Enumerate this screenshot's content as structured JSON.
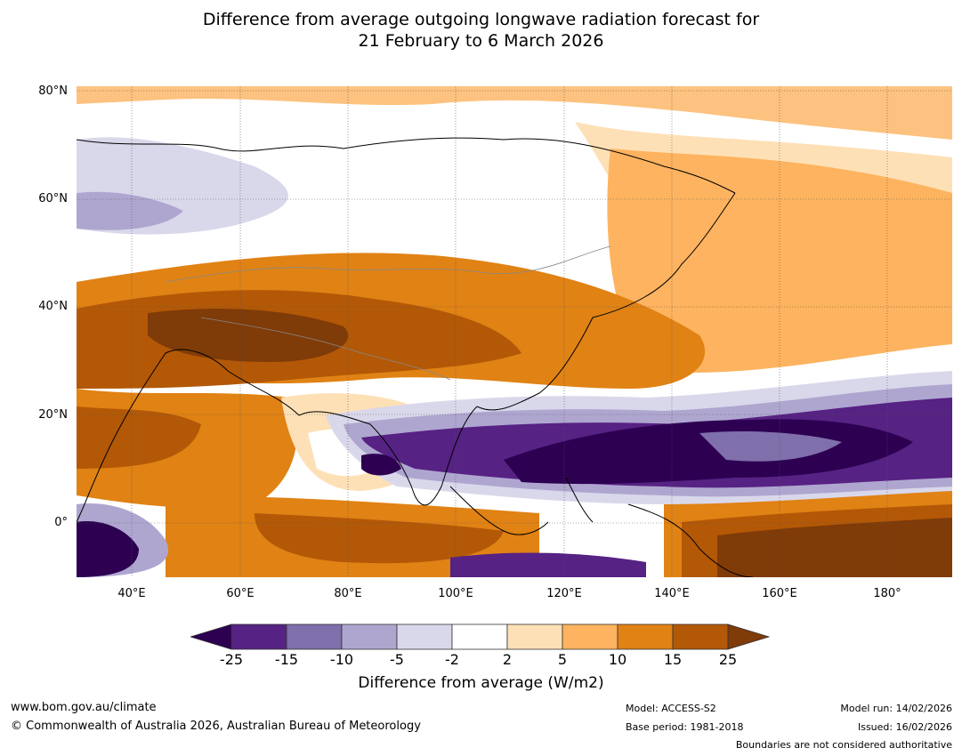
{
  "title_line1": "Difference from average outgoing longwave radiation forecast for",
  "title_line2": "21 February to 6 March 2026",
  "latitudes": [
    "80°N",
    "60°N",
    "40°N",
    "20°N",
    "0°"
  ],
  "longitudes": [
    "40°E",
    "60°E",
    "80°E",
    "100°E",
    "120°E",
    "140°E",
    "160°E",
    "180°"
  ],
  "colorbar": {
    "ticks": [
      "-25",
      "-15",
      "-10",
      "-5",
      "-2",
      "2",
      "5",
      "10",
      "15",
      "25"
    ],
    "colors": {
      "below": "#2d0052",
      "c1": "#562283",
      "c2": "#7f6fab",
      "c3": "#afa6d0",
      "c4": "#d9d8eb",
      "c5": "#ffffff",
      "c6": "#fee0b6",
      "c7": "#fdb35f",
      "c8": "#e08214",
      "c9": "#b35806",
      "above": "#7f3b08"
    },
    "label": "Difference from average (W/m2)"
  },
  "footer": {
    "website": "www.bom.gov.au/climate",
    "copyright": "© Commonwealth of Australia 2026, Australian Bureau of Meteorology",
    "model": "Model: ACCESS-S2",
    "base_period": "Base period: 1981-2018",
    "model_run": "Model run: 14/02/2026",
    "issued": "Issued: 16/02/2026",
    "disclaimer": "Boundaries are not considered authoritative"
  }
}
